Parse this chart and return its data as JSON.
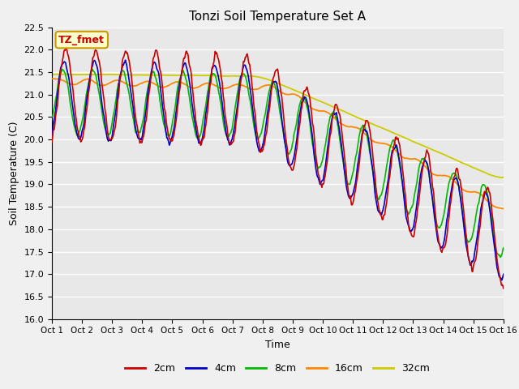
{
  "title": "Tonzi Soil Temperature Set A",
  "xlabel": "Time",
  "ylabel": "Soil Temperature (C)",
  "ylim": [
    16.0,
    22.5
  ],
  "xlim": [
    0,
    15
  ],
  "xtick_labels": [
    "Oct 1",
    "Oct 2",
    "Oct 3",
    "Oct 4",
    "Oct 5",
    "Oct 6",
    "Oct 7",
    "Oct 8",
    "Oct 9",
    "Oct 10",
    "Oct 11",
    "Oct 12",
    "Oct 13",
    "Oct 14",
    "Oct 15",
    "Oct 16"
  ],
  "ytick_vals": [
    16.0,
    16.5,
    17.0,
    17.5,
    18.0,
    18.5,
    19.0,
    19.5,
    20.0,
    20.5,
    21.0,
    21.5,
    22.0,
    22.5
  ],
  "series_colors": [
    "#cc0000",
    "#0000cc",
    "#00bb00",
    "#ff8800",
    "#cccc00"
  ],
  "series_labels": [
    "2cm",
    "4cm",
    "8cm",
    "16cm",
    "32cm"
  ],
  "annotation_text": "TZ_fmet",
  "annotation_box_facecolor": "#ffffcc",
  "annotation_box_edgecolor": "#cc9900",
  "annotation_text_color": "#cc0000",
  "plot_bg_color": "#e8e8e8",
  "fig_bg_color": "#f0f0f0",
  "grid_color": "#ffffff",
  "n_points": 720
}
